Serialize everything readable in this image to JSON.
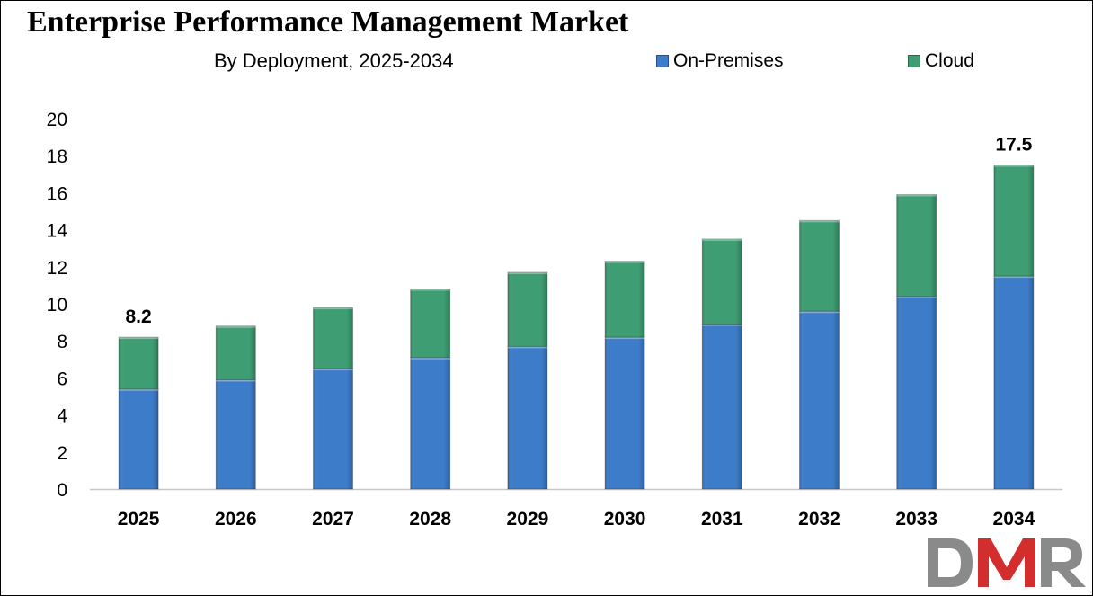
{
  "chart_data": {
    "type": "bar",
    "stacked": true,
    "title": "Enterprise Performance Management Market",
    "subtitle": "By Deployment, 2025-2034",
    "categories": [
      "2025",
      "2026",
      "2027",
      "2028",
      "2029",
      "2030",
      "2031",
      "2032",
      "2033",
      "2034"
    ],
    "series": [
      {
        "name": "On-Premises",
        "color": "#3d7cc9",
        "values": [
          5.4,
          5.9,
          6.5,
          7.1,
          7.7,
          8.2,
          8.9,
          9.6,
          10.4,
          11.5
        ]
      },
      {
        "name": "Cloud",
        "color": "#3e9d72",
        "values": [
          2.8,
          2.9,
          3.3,
          3.7,
          4.0,
          4.1,
          4.6,
          4.9,
          5.5,
          6.0
        ]
      }
    ],
    "ylim": [
      0,
      20
    ],
    "yticks": [
      "0",
      "2",
      "4",
      "6",
      "8",
      "10",
      "12",
      "14",
      "16",
      "18",
      "20"
    ],
    "data_labels": [
      {
        "category": "2025",
        "text": "8.2"
      },
      {
        "category": "2034",
        "text": "17.5"
      }
    ],
    "xlabel": "",
    "ylabel": "",
    "grid": false,
    "legend_position": "top-right"
  },
  "logo": {
    "text": "DMR",
    "colors": {
      "d": "#8a8a8a",
      "m": "#d42d2d",
      "r": "#8a8a8a"
    }
  },
  "colors": {
    "axis": "#c8c8c8",
    "border": "#000000"
  }
}
